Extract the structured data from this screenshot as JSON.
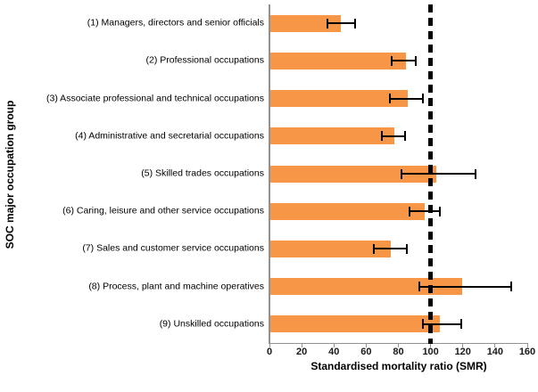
{
  "chart_data": {
    "type": "bar",
    "orientation": "horizontal",
    "xlabel": "Standardised mortality ratio (SMR)",
    "ylabel": "SOC major occupation group",
    "xlim": [
      0,
      160
    ],
    "xticks": [
      0,
      20,
      40,
      60,
      80,
      100,
      120,
      140,
      160
    ],
    "grid": "off",
    "legend": "none",
    "bar_color": "#F79646",
    "error_bar_color": "#000000",
    "reference_line": {
      "value": 100,
      "style": "dashed",
      "color": "#000000"
    },
    "categories": [
      "(1) Managers, directors and senior officials",
      "(2) Professional occupations",
      "(3) Associate professional and technical occupations",
      "(4) Administrative and secretarial occupations",
      "(5) Skilled trades occupations",
      "(6) Caring, leisure and other service occupations",
      "(7) Sales and customer service occupations",
      "(8) Process, plant and machine operatives",
      "(9) Unskilled occupations"
    ],
    "series": [
      {
        "name": "SMR",
        "values": [
          44,
          84,
          85,
          77,
          103,
          96,
          75,
          119,
          105
        ],
        "ci_low": [
          36,
          76,
          75,
          70,
          82,
          87,
          65,
          93,
          95
        ],
        "ci_high": [
          53,
          91,
          95,
          84,
          128,
          106,
          85,
          150,
          119
        ]
      }
    ]
  }
}
